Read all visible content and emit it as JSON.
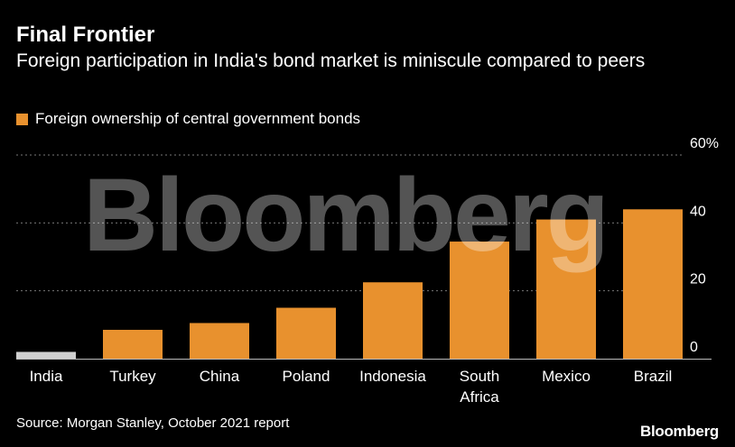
{
  "colors": {
    "background": "#000000",
    "bar": "#e8912e",
    "highlight_bar": "#d0d0d0",
    "grid": "#777777",
    "text": "#ffffff"
  },
  "branding": {
    "watermark": "Bloomberg",
    "logo": "Bloomberg"
  },
  "source": "Source: Morgan Stanley, October 2021 report",
  "chart_data": {
    "type": "bar",
    "title": "Final Frontier",
    "subtitle": "Foreign participation in India's bond market is miniscule compared to peers",
    "legend": [
      "Foreign ownership of central government bonds"
    ],
    "legend_position": "top-left",
    "categories": [
      "India",
      "Turkey",
      "China",
      "Poland",
      "Indonesia",
      "South Africa",
      "Mexico",
      "Brazil"
    ],
    "category_lines": [
      [
        "India"
      ],
      [
        "Turkey"
      ],
      [
        "China"
      ],
      [
        "Poland"
      ],
      [
        "Indonesia"
      ],
      [
        "South",
        "Africa"
      ],
      [
        "Mexico"
      ],
      [
        "Brazil"
      ]
    ],
    "series": [
      {
        "name": "Foreign ownership of central government bonds",
        "values": [
          2,
          8.5,
          10.5,
          15,
          22.5,
          34.5,
          41,
          44
        ]
      }
    ],
    "highlight_category": "India",
    "ylim": [
      0,
      60
    ],
    "y_ticks": [
      "0",
      "20",
      "40",
      "60%"
    ],
    "y_tick_values": [
      0,
      20,
      40,
      60
    ],
    "y_axis_side": "right",
    "grid": true,
    "xlabel": "",
    "ylabel": ""
  }
}
